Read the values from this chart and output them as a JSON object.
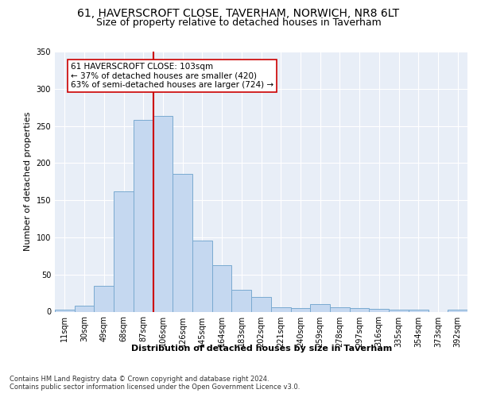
{
  "title_line1": "61, HAVERSCROFT CLOSE, TAVERHAM, NORWICH, NR8 6LT",
  "title_line2": "Size of property relative to detached houses in Taverham",
  "xlabel": "Distribution of detached houses by size in Taverham",
  "ylabel": "Number of detached properties",
  "categories": [
    "11sqm",
    "30sqm",
    "49sqm",
    "68sqm",
    "87sqm",
    "106sqm",
    "126sqm",
    "145sqm",
    "164sqm",
    "183sqm",
    "202sqm",
    "221sqm",
    "240sqm",
    "259sqm",
    "278sqm",
    "297sqm",
    "316sqm",
    "335sqm",
    "354sqm",
    "373sqm",
    "392sqm"
  ],
  "values": [
    3,
    8,
    35,
    162,
    258,
    263,
    185,
    96,
    63,
    29,
    20,
    6,
    5,
    10,
    6,
    5,
    4,
    3,
    3,
    0,
    3
  ],
  "bar_color": "#c5d8f0",
  "bar_edge_color": "#7aaad0",
  "vline_x_index": 5,
  "vline_color": "#cc0000",
  "annotation_text": "61 HAVERSCROFT CLOSE: 103sqm\n← 37% of detached houses are smaller (420)\n63% of semi-detached houses are larger (724) →",
  "annotation_box_facecolor": "#ffffff",
  "annotation_box_edgecolor": "#cc0000",
  "ylim": [
    0,
    350
  ],
  "yticks": [
    0,
    50,
    100,
    150,
    200,
    250,
    300,
    350
  ],
  "footer_line1": "Contains HM Land Registry data © Crown copyright and database right 2024.",
  "footer_line2": "Contains public sector information licensed under the Open Government Licence v3.0.",
  "plot_bg_color": "#e8eef7",
  "fig_bg_color": "#ffffff",
  "title_fontsize": 10,
  "subtitle_fontsize": 9,
  "axis_label_fontsize": 8,
  "tick_fontsize": 7,
  "annotation_fontsize": 7.5,
  "footer_fontsize": 6
}
